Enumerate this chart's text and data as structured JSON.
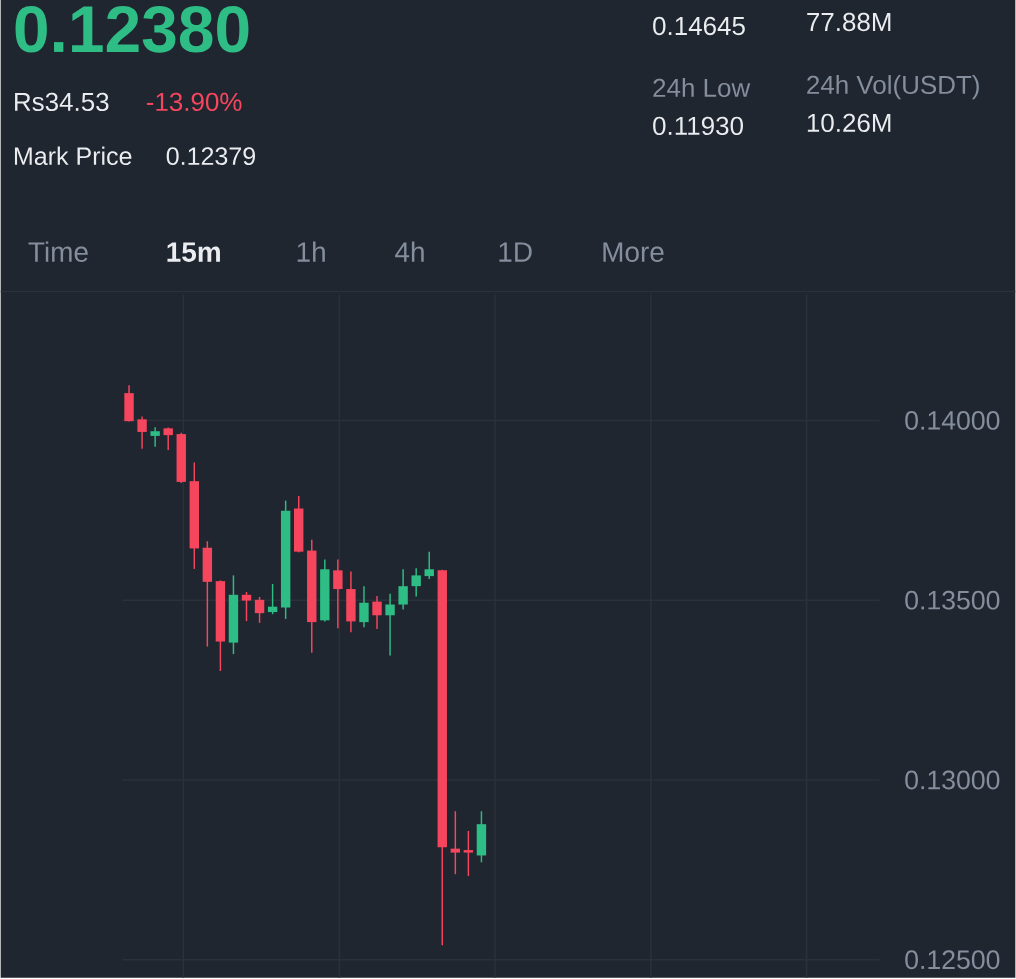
{
  "chart_data": {
    "type": "candlestick",
    "categories": [
      null,
      null,
      null,
      null,
      null,
      null,
      null,
      null,
      null,
      null,
      null,
      null,
      null,
      null,
      null,
      null,
      null,
      null,
      null,
      null,
      null,
      null,
      null,
      null,
      null,
      null,
      null,
      null,
      null,
      null,
      null,
      null,
      null,
      null,
      null,
      null,
      null,
      null,
      null,
      null,
      null,
      null,
      null,
      null,
      null,
      null,
      null,
      null,
      null,
      null,
      null,
      null,
      null,
      null,
      null,
      null,
      null,
      null
    ],
    "ohlc": [
      [
        0.14076,
        0.14098,
        0.13997,
        0.13998
      ],
      [
        0.14003,
        0.14011,
        0.13921,
        0.13968
      ],
      [
        0.13957,
        0.13981,
        0.13927,
        0.1397
      ],
      [
        0.13978,
        0.1398,
        0.13918,
        0.13959
      ],
      [
        0.13962,
        0.13966,
        0.13826,
        0.13829
      ],
      [
        0.13831,
        0.13883,
        0.13587,
        0.13644
      ],
      [
        0.13646,
        0.13664,
        0.13371,
        0.13551
      ],
      [
        0.13553,
        0.13555,
        0.13303,
        0.13385
      ],
      [
        0.13382,
        0.13569,
        0.1335,
        0.13515
      ],
      [
        0.13515,
        0.13523,
        0.13442,
        0.13499
      ],
      [
        0.13501,
        0.13509,
        0.13437,
        0.13464
      ],
      [
        0.13467,
        0.13545,
        0.13461,
        0.13482
      ],
      [
        0.1348,
        0.13777,
        0.13448,
        0.13749
      ],
      [
        0.13755,
        0.1379,
        0.13633,
        0.13635
      ],
      [
        0.13638,
        0.13668,
        0.13354,
        0.13439
      ],
      [
        0.13444,
        0.13613,
        0.13441,
        0.13586
      ],
      [
        0.13583,
        0.13613,
        0.13422,
        0.13531
      ],
      [
        0.13531,
        0.1358,
        0.13411,
        0.13441
      ],
      [
        0.13439,
        0.13539,
        0.13425,
        0.13493
      ],
      [
        0.13496,
        0.13512,
        0.1342,
        0.13458
      ],
      [
        0.13458,
        0.13518,
        0.13346,
        0.13488
      ],
      [
        0.13488,
        0.13586,
        0.13474,
        0.13539
      ],
      [
        0.13539,
        0.13589,
        0.1351,
        0.13569
      ],
      [
        0.13567,
        0.13635,
        0.13559,
        0.13586
      ],
      [
        0.13583,
        0.13585,
        0.1254,
        0.12813
      ],
      [
        0.12809,
        0.12913,
        0.12738,
        0.12798
      ],
      [
        0.12805,
        0.12858,
        0.12733,
        0.12798
      ],
      [
        0.1279,
        0.12913,
        0.12771,
        0.12877
      ],
      null,
      null,
      null,
      null,
      null,
      null,
      null,
      null,
      null,
      null,
      null,
      null,
      null,
      null,
      null,
      null,
      null,
      null,
      null,
      null,
      null,
      null,
      null,
      null,
      null,
      null,
      null,
      null,
      null,
      null
    ],
    "colors": [
      "#f6465d",
      "#f6465d",
      "#2ebd85",
      "#f6465d",
      "#f6465d",
      "#f6465d",
      "#f6465d",
      "#f6465d",
      "#2ebd85",
      "#f6465d",
      "#f6465d",
      "#2ebd85",
      "#2ebd85",
      "#f6465d",
      "#f6465d",
      "#2ebd85",
      "#f6465d",
      "#f6465d",
      "#2ebd85",
      "#f6465d",
      "#2ebd85",
      "#2ebd85",
      "#2ebd85",
      "#2ebd85",
      "#f6465d",
      "#f6465d",
      "#f6465d",
      "#2ebd85",
      null,
      null,
      null,
      null,
      null,
      null,
      null,
      null,
      null,
      null,
      null,
      null,
      null,
      null,
      null,
      null,
      null,
      null,
      null,
      null,
      null,
      null,
      null,
      null,
      null,
      null,
      null,
      null,
      null,
      null
    ],
    "ylim": [
      0.1245,
      0.1435
    ],
    "yticks": [
      {
        "value": 0.125,
        "label": "0.12500"
      },
      {
        "value": 0.13,
        "label": "0.13000"
      },
      {
        "value": 0.135,
        "label": "0.13500"
      },
      {
        "value": 0.14,
        "label": "0.14000"
      }
    ],
    "grid": true,
    "annotations": [
      "0.12380",
      "Rs34.53",
      "-13.90%",
      "Mark Price",
      "0.12379",
      "0.14645",
      "77.88M",
      "24h Low",
      "0.11930",
      "24h Vol(USDT)",
      "10.26M",
      "Time",
      "15m",
      "1h",
      "4h",
      "1D",
      "More"
    ]
  }
}
